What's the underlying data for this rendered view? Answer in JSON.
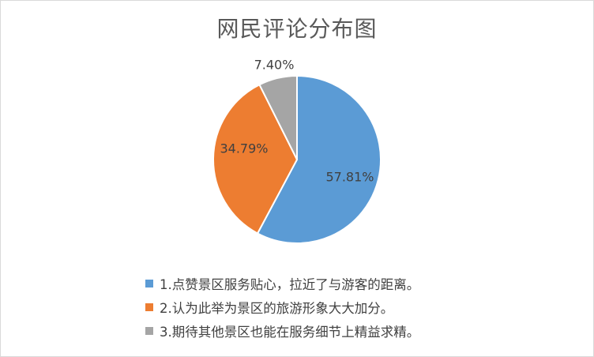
{
  "chart_data": {
    "type": "pie",
    "title": "网民评论分布图",
    "categories": [
      "1.点赞景区服务贴心，拉近了与游客的距离。",
      "2.认为此举为景区的旅游形象大大加分。",
      "3.期待其他景区也能在服务细节上精益求精。"
    ],
    "values": [
      57.81,
      34.79,
      7.4
    ],
    "data_labels": [
      "57.81%",
      "34.79%",
      "7.40%"
    ],
    "colors": [
      "#5B9BD5",
      "#ED7D31",
      "#A5A5A5"
    ],
    "legend_position": "bottom",
    "label_color": "#404040"
  }
}
